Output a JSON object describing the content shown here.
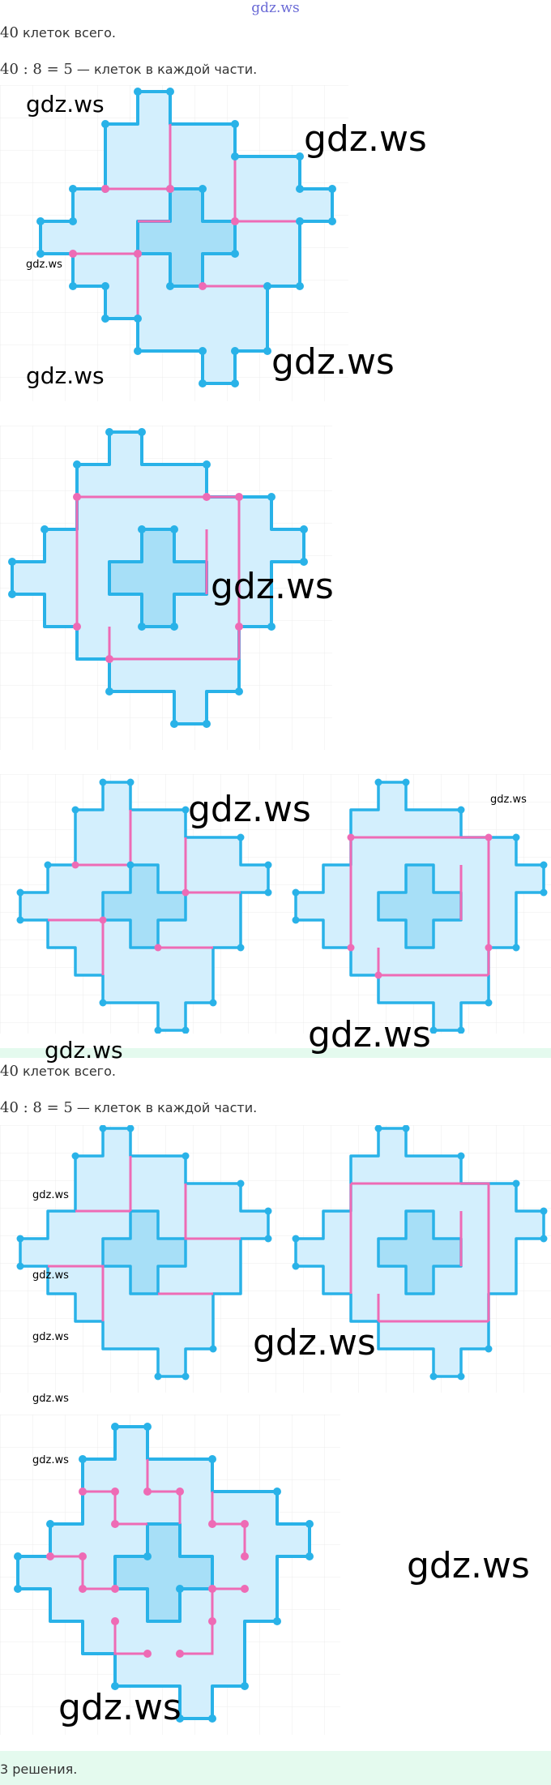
{
  "header": {
    "site": "gdz.ws"
  },
  "solution_1": {
    "total_num": "40",
    "total_text": " клеток всего.",
    "division_num": "40 : 8 = 5",
    "division_text": " — клеток в каждой части."
  },
  "solution_2": {
    "total_num": "40",
    "total_text": " клеток всего.",
    "division_num": "40 : 8 = 5",
    "division_text": " — клеток в каждой части."
  },
  "footer": {
    "result": "3 решения."
  },
  "watermark": "gdz.ws",
  "colors": {
    "cell_fill": "#d3effd",
    "center_fill": "#a7dff7",
    "outline": "#29b2e8",
    "cut_line": "#ee6bb5",
    "grid": "#ececec",
    "band": "#e4faee"
  }
}
